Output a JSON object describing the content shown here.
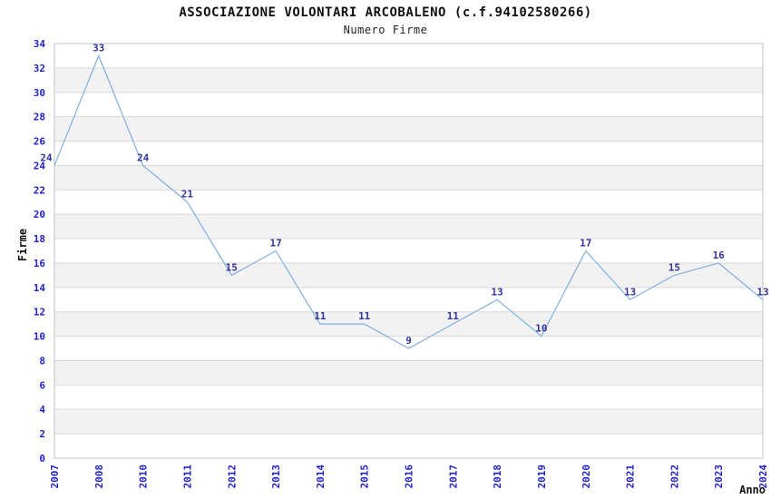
{
  "chart_data": {
    "type": "line",
    "title": "ASSOCIAZIONE VOLONTARI ARCOBALENO (c.f.94102580266)",
    "subtitle": "Numero Firme",
    "xlabel": "Anno",
    "ylabel": "Firme",
    "categories": [
      "2007",
      "2008",
      "2010",
      "2011",
      "2012",
      "2013",
      "2014",
      "2015",
      "2016",
      "2017",
      "2018",
      "2019",
      "2020",
      "2021",
      "2022",
      "2023",
      "2024"
    ],
    "values": [
      24,
      33,
      24,
      21,
      15,
      17,
      11,
      11,
      9,
      11,
      13,
      10,
      17,
      13,
      15,
      16,
      13
    ],
    "ylim": [
      0,
      34
    ],
    "ytick_step": 2,
    "grid": true,
    "legend": false,
    "band_fill": "alternating 2-unit horizontal stripes",
    "colors": {
      "line": "#7fb0e0",
      "data_label": "#333399",
      "tick_label": "#2222cc",
      "axis_title": "#111111",
      "band": "#f2f2f2",
      "gridline": "#d9d9d9",
      "plot_border": "#c0c0c0",
      "background": "#ffffff"
    }
  }
}
